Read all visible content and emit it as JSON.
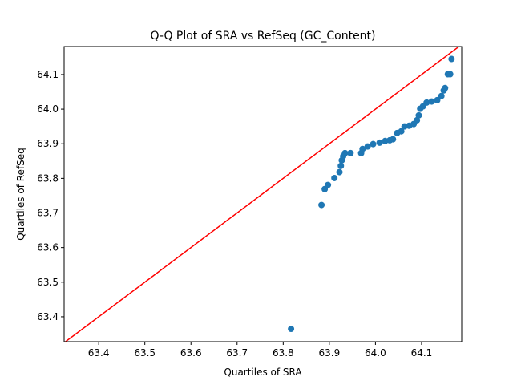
{
  "chart_data": {
    "type": "scatter",
    "title": "Q-Q Plot of SRA vs RefSeq (GC_Content)",
    "x_label": "Quartiles of SRA",
    "y_label": "Quartiles of RefSeq",
    "color": "#1f77b4",
    "reference_line": {
      "color": "#ff0000"
    },
    "x": [
      63.817,
      63.883,
      63.89,
      63.897,
      63.911,
      63.922,
      63.925,
      63.927,
      63.93,
      63.934,
      63.946,
      63.969,
      63.972,
      63.983,
      63.995,
      64.009,
      64.021,
      64.031,
      64.038,
      64.047,
      64.056,
      64.063,
      64.073,
      64.083,
      64.09,
      64.094,
      64.097,
      64.103,
      64.111,
      64.122,
      64.134,
      64.143,
      64.148,
      64.151,
      64.157,
      64.162,
      64.165
    ],
    "values": [
      63.365,
      63.723,
      63.769,
      63.781,
      63.801,
      63.818,
      63.836,
      63.852,
      63.864,
      63.873,
      63.873,
      63.873,
      63.885,
      63.892,
      63.899,
      63.903,
      63.908,
      63.91,
      63.913,
      63.931,
      63.936,
      63.95,
      63.952,
      63.957,
      63.968,
      63.982,
      64.001,
      64.008,
      64.019,
      64.022,
      64.026,
      64.038,
      64.054,
      64.061,
      64.101,
      64.101,
      64.145
    ],
    "xlim": [
      63.325,
      64.187
    ],
    "ylim": [
      63.328,
      64.181
    ],
    "xticks": [
      63.4,
      63.5,
      63.6,
      63.7,
      63.8,
      63.9,
      {
        "value": 64,
        "label": "64.0"
      },
      64.1
    ],
    "yticks": [
      63.4,
      63.5,
      63.6,
      63.7,
      63.8,
      63.9,
      {
        "value": 64,
        "label": "64.0"
      },
      64.1
    ]
  }
}
